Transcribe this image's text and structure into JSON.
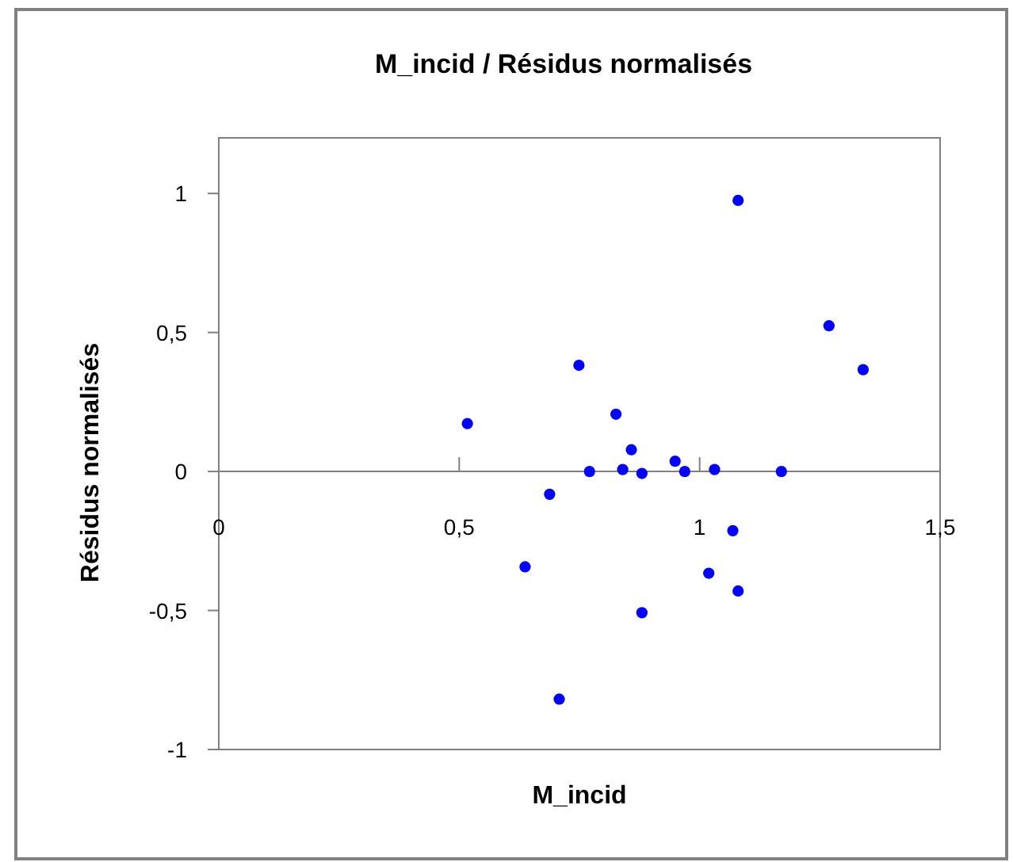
{
  "chart_data": {
    "type": "scatter",
    "title": "M_incid / Résidus normalisés",
    "xlabel": "M_incid",
    "ylabel": "Résidus normalisés",
    "x": [
      0.517,
      0.749,
      0.771,
      0.826,
      0.84,
      0.858,
      0.88,
      0.949,
      0.969,
      1.031,
      1.08,
      1.17,
      1.269,
      1.34,
      0.688,
      0.637,
      0.708,
      0.88,
      1.019,
      1.069,
      1.08
    ],
    "series": [
      {
        "color": "#0000ff",
        "values": [
          0.172,
          0.382,
          0,
          0.206,
          0.007,
          0.078,
          -0.007,
          0.037,
          0,
          0.007,
          0.975,
          0,
          0.524,
          0.366,
          -0.082,
          -0.343,
          -0.819,
          -0.508,
          -0.366,
          -0.213,
          -0.43
        ]
      }
    ],
    "xlim": [
      0,
      1.5
    ],
    "ylim": [
      -1,
      1.2
    ],
    "xticks": [
      0,
      {
        "value": 0.5,
        "label": "0,5"
      },
      1,
      {
        "value": 1.5,
        "label": "1,5"
      }
    ],
    "yticks": [
      -1,
      {
        "value": -0.5,
        "label": "-0,5"
      },
      0,
      {
        "value": 0.5,
        "label": "0,5"
      },
      1
    ],
    "marker": "circle",
    "grid": false
  }
}
